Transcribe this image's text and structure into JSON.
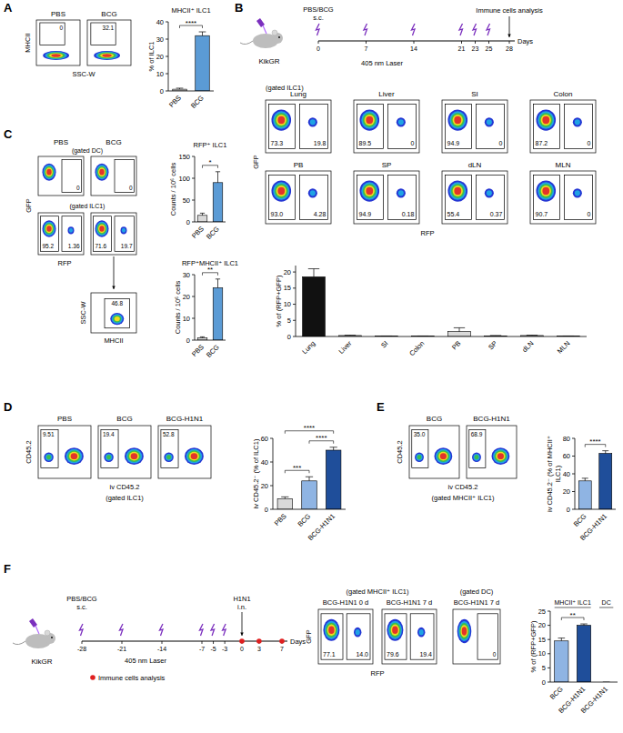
{
  "figure": {
    "panels": [
      "A",
      "B",
      "C",
      "D",
      "E",
      "F"
    ],
    "A": {
      "flow": {
        "x_label": "SSC-W",
        "y_label": "MHCII",
        "plots": [
          {
            "title": "PBS",
            "gates": [
              "0"
            ]
          },
          {
            "title": "BCG",
            "gates": [
              "32.1"
            ]
          }
        ]
      }
    },
    "B": {
      "schematic": {
        "strain": "KikGR",
        "treatment": "PBS/BCG",
        "route": "s.c.",
        "laser": "405 nm Laser",
        "endpoint": "Immune cells analysis",
        "axis_label": "Days",
        "days": [
          0,
          7,
          14,
          21,
          23,
          25,
          28
        ],
        "laser_days": [
          0,
          7,
          14,
          21,
          23,
          25
        ]
      },
      "flow": {
        "gate_label": "(gated ILC1)",
        "x_label": "RFP",
        "y_label": "GFP",
        "plots": [
          {
            "title": "Lung",
            "gates": [
              "73.3",
              "19.8"
            ]
          },
          {
            "title": "Liver",
            "gates": [
              "89.5",
              "0"
            ]
          },
          {
            "title": "SI",
            "gates": [
              "94.9",
              "0"
            ]
          },
          {
            "title": "Colon",
            "gates": [
              "87.2",
              "0"
            ]
          },
          {
            "title": "PB",
            "gates": [
              "93.0",
              "4.28"
            ]
          },
          {
            "title": "SP",
            "gates": [
              "94.9",
              "0.18"
            ]
          },
          {
            "title": "dLN",
            "gates": [
              "55.4",
              "0.37"
            ]
          },
          {
            "title": "MLN",
            "gates": [
              "90.7",
              "0"
            ]
          }
        ]
      }
    },
    "C": {
      "titles": [
        "PBS",
        "BCG"
      ],
      "dc": {
        "gate_label": "(gated DC)",
        "gates": [
          "0",
          "0"
        ]
      },
      "ilc1": {
        "gate_label": "(gated ILC1)",
        "x_label": "RFP",
        "y_label": "GFP",
        "plots": [
          {
            "gates": [
              "95.2",
              "1.36"
            ]
          },
          {
            "gates": [
              "71.6",
              "19.7"
            ]
          }
        ]
      },
      "mhcii": {
        "x_label": "MHCII",
        "y_label": "SSC-W",
        "gates": [
          "46.8"
        ]
      }
    },
    "D": {
      "flow": {
        "gate_label": "(gated ILC1)",
        "x_label": "iv CD45.2",
        "y_label": "CD45.2",
        "plots": [
          {
            "title": "PBS",
            "gates": [
              "9.51"
            ]
          },
          {
            "title": "BCG",
            "gates": [
              "19.4"
            ]
          },
          {
            "title": "BCG-H1N1",
            "gates": [
              "52.8"
            ]
          }
        ]
      }
    },
    "E": {
      "flow": {
        "gate_label": "(gated MHCII⁺ ILC1)",
        "x_label": "iv CD45.2",
        "y_label": "CD45.2",
        "plots": [
          {
            "title": "BCG",
            "gates": [
              "35.0"
            ]
          },
          {
            "title": "BCG-H1N1",
            "gates": [
              "68.9"
            ]
          }
        ]
      }
    },
    "F": {
      "schematic": {
        "strain": "KikGR",
        "treatment": "PBS/BCG",
        "route": "s.c.",
        "challenge": "H1N1",
        "challenge_route": "i.n.",
        "laser": "405 nm Laser",
        "axis_label": "Days",
        "legend": "Immune cells analysis",
        "days": [
          -28,
          -21,
          -14,
          -7,
          -5,
          -3,
          0,
          3,
          7
        ],
        "laser_days": [
          -28,
          -21,
          -14,
          -7,
          -5,
          -3
        ],
        "analysis_days": [
          0,
          3,
          7
        ]
      },
      "flow": {
        "gate_label": "(gated MHCII⁺ ILC1)",
        "x_label": "RFP",
        "y_label": "GFP",
        "plots": [
          {
            "title": "BCG-H1N1 0 d",
            "gates": [
              "77.1",
              "14.0"
            ]
          },
          {
            "title": "BCG-H1N1 7 d",
            "gates": [
              "79.6",
              "19.4"
            ]
          }
        ]
      },
      "dc_flow": {
        "gate_label": "(gated DC)",
        "plots": [
          {
            "title": "BCG-H1N1 7 d",
            "gates": [
              "0"
            ]
          }
        ]
      }
    }
  },
  "chart_data": [
    {
      "type": "bar",
      "title": "MHCII⁺ ILC1",
      "y_label": "% of ILC1",
      "categories": [
        "PBS",
        "BCG"
      ],
      "values": [
        1,
        32
      ],
      "errors": [
        0.6,
        2.2
      ],
      "colors": [
        "#d9d9d9",
        "#5b9bd5"
      ],
      "ylim": [
        0,
        40
      ],
      "yticks": [
        0,
        10,
        20,
        30,
        40
      ],
      "comparisons": [
        {
          "text": "****",
          "between": [
            0,
            1
          ]
        }
      ]
    },
    {
      "type": "bar",
      "y_label": "% of (RFP+GFP)",
      "categories": [
        "Lung",
        "Liver",
        "SI",
        "Colon",
        "PB",
        "SP",
        "dLN",
        "MLN"
      ],
      "values": [
        18.5,
        0.3,
        0.1,
        0.1,
        1.5,
        0.2,
        0.3,
        0.1
      ],
      "errors": [
        2.5,
        0.1,
        0.05,
        0.05,
        1.2,
        0.1,
        0.1,
        0.05
      ],
      "colors": [
        "#111111",
        "#d9d9d9",
        "#d9d9d9",
        "#d9d9d9",
        "#d9d9d9",
        "#d9d9d9",
        "#d9d9d9",
        "#d9d9d9"
      ],
      "ylim": [
        0,
        22
      ],
      "yticks": [
        0,
        5,
        10,
        15,
        20
      ]
    },
    {
      "type": "bar",
      "title": "RFP⁺ ILC1",
      "y_label": "Counts / 10⁶ cells",
      "categories": [
        "PBS",
        "BCG"
      ],
      "values": [
        15,
        90
      ],
      "errors": [
        5,
        25
      ],
      "colors": [
        "#d9d9d9",
        "#5b9bd5"
      ],
      "ylim": [
        0,
        150
      ],
      "yticks": [
        0,
        50,
        100,
        150
      ],
      "comparisons": [
        {
          "text": "*",
          "between": [
            0,
            1
          ]
        }
      ]
    },
    {
      "type": "bar",
      "title": "RFP⁺MHCII⁺ ILC1",
      "y_label": "Counts / 10⁶ cells",
      "categories": [
        "PBS",
        "BCG"
      ],
      "values": [
        1,
        24
      ],
      "errors": [
        0.5,
        4
      ],
      "colors": [
        "#d9d9d9",
        "#5b9bd5"
      ],
      "ylim": [
        0,
        30
      ],
      "yticks": [
        0,
        10,
        20,
        30
      ],
      "comparisons": [
        {
          "text": "**",
          "between": [
            0,
            1
          ]
        }
      ]
    },
    {
      "type": "bar",
      "y_label": "iv CD45.2⁻ (% of ILC1)",
      "categories": [
        "PBS",
        "BCG",
        "BCG-H1N1"
      ],
      "values": [
        9,
        24,
        50
      ],
      "errors": [
        1.5,
        3.5,
        2.5
      ],
      "colors": [
        "#d9d9d9",
        "#8fb4e3",
        "#1f4e9a"
      ],
      "ylim": [
        0,
        60
      ],
      "yticks": [
        0,
        20,
        40,
        60
      ],
      "comparisons": [
        {
          "text": "***",
          "between": [
            0,
            1
          ]
        },
        {
          "text": "****",
          "between": [
            1,
            2
          ]
        },
        {
          "text": "****",
          "between": [
            0,
            2
          ]
        }
      ]
    },
    {
      "type": "bar",
      "y_label": "iv CD45.2⁻ (% of MHCII⁺ ILC1)",
      "categories": [
        "BCG",
        "BCG-H1N1"
      ],
      "values": [
        32,
        63
      ],
      "errors": [
        3,
        3
      ],
      "colors": [
        "#8fb4e3",
        "#1f4e9a"
      ],
      "ylim": [
        0,
        80
      ],
      "yticks": [
        0,
        20,
        40,
        60,
        80
      ],
      "comparisons": [
        {
          "text": "****",
          "between": [
            0,
            1
          ]
        }
      ]
    },
    {
      "type": "bar",
      "y_label": "% of (RFP+GFP)",
      "categories": [
        "BCG",
        "BCG-H1N1",
        "BCG-H1N1"
      ],
      "values": [
        14.5,
        20,
        0
      ],
      "errors": [
        1,
        0.5,
        0
      ],
      "colors": [
        "#8fb4e3",
        "#1f4e9a",
        "#1f4e9a"
      ],
      "ylim": [
        0,
        25
      ],
      "yticks": [
        0,
        5,
        10,
        15,
        20,
        25
      ],
      "groups": [
        {
          "label": "MHCII⁺ ILC1",
          "categories": [
            0,
            1
          ]
        },
        {
          "label": "DC",
          "categories": [
            2
          ]
        }
      ],
      "comparisons": [
        {
          "text": "**",
          "between": [
            0,
            1
          ]
        }
      ]
    }
  ]
}
